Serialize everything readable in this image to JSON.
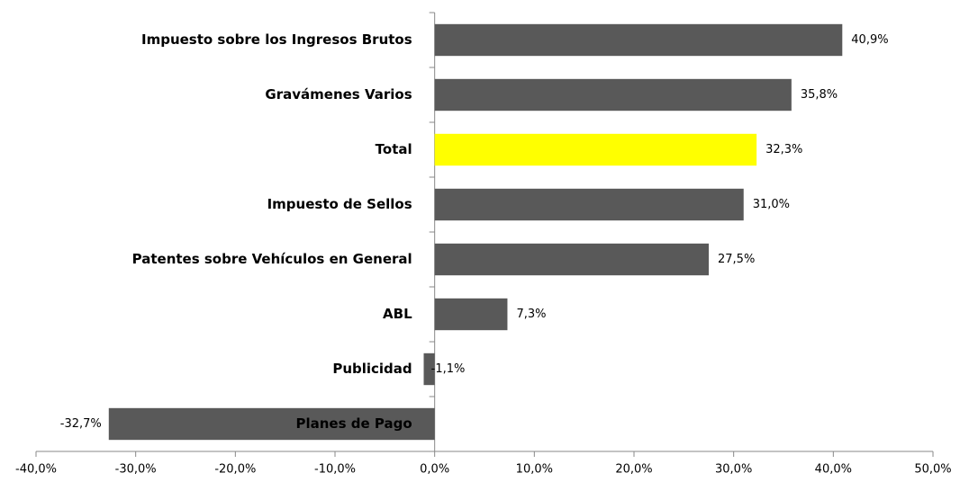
{
  "chart_data": {
    "type": "barh",
    "categories": [
      "Impuesto sobre los Ingresos Brutos",
      "Gravámenes Varios",
      "Total",
      "Impuesto de Sellos",
      "Patentes sobre Vehículos en General",
      "ABL",
      "Publicidad",
      "Planes de Pago"
    ],
    "values": [
      40.9,
      35.8,
      32.3,
      31.0,
      27.5,
      7.3,
      -1.1,
      -32.7
    ],
    "value_labels": [
      "40,9%",
      "35,8%",
      "32,3%",
      "31,0%",
      "27,5%",
      "7,3%",
      "-1,1%",
      "-32,7%"
    ],
    "colors": [
      "#595959",
      "#595959",
      "#ffff00",
      "#595959",
      "#595959",
      "#595959",
      "#595959",
      "#595959"
    ],
    "xlim": [
      -40,
      50
    ],
    "xticks": [
      {
        "value": -40,
        "label": "-40,0%"
      },
      {
        "value": -30,
        "label": "-30,0%"
      },
      {
        "value": -20,
        "label": "-20,0%"
      },
      {
        "value": -10,
        "label": "-10,0%"
      },
      {
        "value": 0,
        "label": "0,0%"
      },
      {
        "value": 10,
        "label": "10,0%"
      },
      {
        "value": 20,
        "label": "20,0%"
      },
      {
        "value": 30,
        "label": "30,0%"
      },
      {
        "value": 40,
        "label": "40,0%"
      },
      {
        "value": 50,
        "label": "50,0%"
      }
    ],
    "grid": false
  }
}
